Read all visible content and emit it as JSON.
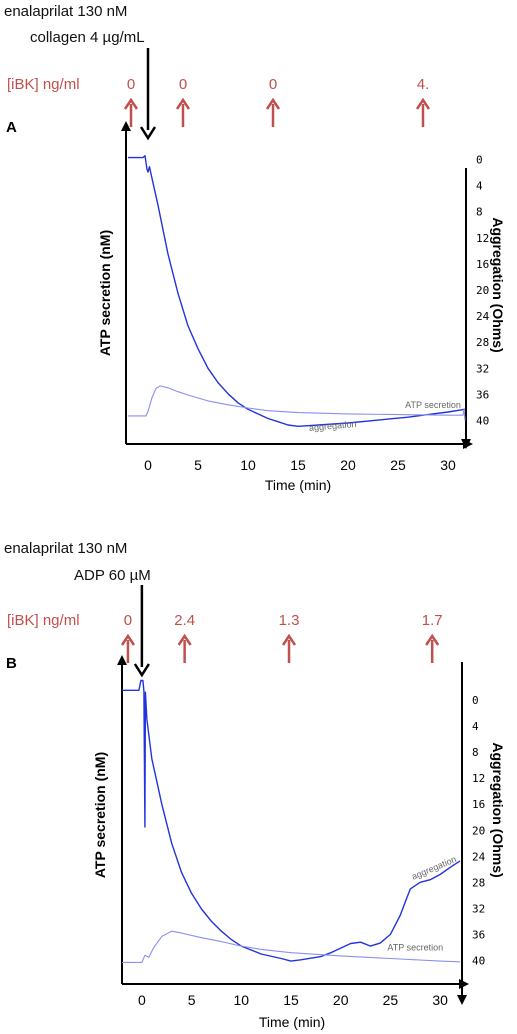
{
  "colors": {
    "agent_text": "#111111",
    "ibk": "#c0504d",
    "trace": "#2233dd",
    "trace_light": "#8a8ff0",
    "axis": "#000000"
  },
  "chart_data": [
    {
      "panel": "A",
      "type": "line",
      "agents": [
        "enalaprilat 130 nM",
        "collagen 4 µg/mL"
      ],
      "ibk_label": "[iBK] ng/ml",
      "ibk_markers": [
        {
          "x": -1.7,
          "label": "0"
        },
        {
          "x": 3.5,
          "label": "0"
        },
        {
          "x": 12.5,
          "label": "0"
        },
        {
          "x": 27.5,
          "label": "4."
        }
      ],
      "agonist_x": 0,
      "xlabel": "Time (min)",
      "ylabel_left": "ATP secretion (nM)",
      "ylabel_right": "Aggregation  (Ohms)",
      "xlim": [
        -2.2,
        31.8
      ],
      "xticks": [
        0,
        5,
        10,
        15,
        20,
        25,
        30
      ],
      "ylim_right": [
        -3,
        43
      ],
      "yticks_right": [
        0,
        4,
        8,
        12,
        16,
        20,
        24,
        28,
        32,
        36,
        40
      ],
      "series": [
        {
          "name": "aggregation",
          "style": "dark",
          "points": [
            [
              -2.0,
              -0.3
            ],
            [
              -0.5,
              -0.3
            ],
            [
              -0.3,
              -0.6
            ],
            [
              -0.1,
              1.5
            ],
            [
              0,
              1.9
            ],
            [
              0.15,
              1.1
            ],
            [
              0.3,
              2.2
            ],
            [
              1,
              7
            ],
            [
              2,
              14.5
            ],
            [
              3,
              20.5
            ],
            [
              4,
              25.5
            ],
            [
              5,
              29
            ],
            [
              6,
              32
            ],
            [
              7,
              34.2
            ],
            [
              8,
              35.9
            ],
            [
              9,
              37.3
            ],
            [
              10,
              38.3
            ],
            [
              11,
              39
            ],
            [
              12,
              39.7
            ],
            [
              13,
              40.2
            ],
            [
              14,
              40.7
            ],
            [
              15,
              40.9
            ],
            [
              16,
              40.8
            ],
            [
              18,
              40.6
            ],
            [
              20,
              40.4
            ],
            [
              22,
              40.1
            ],
            [
              24,
              39.8
            ],
            [
              26,
              39.5
            ],
            [
              28,
              39.1
            ],
            [
              30,
              38.7
            ],
            [
              31.7,
              38.3
            ]
          ]
        },
        {
          "name": "ATP secretion",
          "style": "light",
          "points": [
            [
              -2.0,
              39.3
            ],
            [
              -0.2,
              39.3
            ],
            [
              0,
              38.6
            ],
            [
              0.4,
              36.5
            ],
            [
              0.8,
              35.1
            ],
            [
              1.2,
              34.7
            ],
            [
              2,
              35
            ],
            [
              3,
              35.6
            ],
            [
              4,
              36.1
            ],
            [
              6,
              37
            ],
            [
              8,
              37.6
            ],
            [
              10,
              38.1
            ],
            [
              12,
              38.5
            ],
            [
              15,
              38.8
            ],
            [
              20,
              39
            ],
            [
              25,
              39.1
            ],
            [
              30,
              39.2
            ],
            [
              31.5,
              39.2
            ],
            [
              31.6,
              38.2
            ],
            [
              31.7,
              40
            ]
          ]
        }
      ],
      "annotations": [
        {
          "text": "ATP secretion",
          "x": 28.5,
          "y": 38.1
        },
        {
          "text": "aggregation",
          "x": 18.5,
          "y": 41.3,
          "angle": -5
        }
      ]
    },
    {
      "panel": "B",
      "type": "line",
      "agents": [
        "enalaprilat 130 nM",
        "ADP 60 µM"
      ],
      "ibk_label": "[iBK] ng/ml",
      "ibk_markers": [
        {
          "x": -1.4,
          "label": "0"
        },
        {
          "x": 4.3,
          "label": "2.4"
        },
        {
          "x": 14.8,
          "label": "1.3"
        },
        {
          "x": 29.2,
          "label": "1.7"
        }
      ],
      "agonist_x": 0,
      "xlabel": "Time (min)",
      "ylabel_left": "ATP secretion (nM)",
      "ylabel_right": "Aggregation  (Ohms)",
      "xlim": [
        -2.0,
        32.2
      ],
      "xticks": [
        0,
        5,
        10,
        15,
        20,
        25,
        30
      ],
      "ylim_right": [
        -4,
        43
      ],
      "yticks_right": [
        0,
        4,
        8,
        12,
        16,
        20,
        24,
        28,
        32,
        36,
        40
      ],
      "series": [
        {
          "name": "aggregation",
          "style": "dark",
          "points": [
            [
              -2.0,
              -1.5
            ],
            [
              -0.3,
              -1.5
            ],
            [
              -0.1,
              -3
            ],
            [
              0.1,
              -3
            ],
            [
              0.2,
              -1.4
            ],
            [
              0.3,
              19.5
            ],
            [
              0.35,
              -1.2
            ],
            [
              0.5,
              3
            ],
            [
              1,
              9
            ],
            [
              2,
              16
            ],
            [
              3,
              22
            ],
            [
              4,
              26.5
            ],
            [
              5,
              29.7
            ],
            [
              6,
              32.1
            ],
            [
              7,
              34
            ],
            [
              8,
              35.5
            ],
            [
              9,
              36.8
            ],
            [
              10,
              37.8
            ],
            [
              12,
              39
            ],
            [
              14,
              39.7
            ],
            [
              15,
              40.1
            ],
            [
              16,
              39.9
            ],
            [
              18,
              39.4
            ],
            [
              19,
              38.8
            ],
            [
              20,
              38.1
            ],
            [
              21,
              37.4
            ],
            [
              22,
              37.2
            ],
            [
              23,
              37.8
            ],
            [
              24,
              37.3
            ],
            [
              25,
              36
            ],
            [
              26,
              33
            ],
            [
              26.5,
              31
            ],
            [
              27,
              29
            ],
            [
              28,
              28
            ],
            [
              29,
              27.6
            ],
            [
              30,
              26.8
            ],
            [
              31,
              25.7
            ],
            [
              32,
              24.7
            ]
          ]
        },
        {
          "name": "ATP secretion",
          "style": "light",
          "points": [
            [
              -2.0,
              40.3
            ],
            [
              0,
              40.3
            ],
            [
              0.3,
              39.2
            ],
            [
              0.7,
              39.5
            ],
            [
              1.2,
              38
            ],
            [
              2,
              36.3
            ],
            [
              3,
              35.5
            ],
            [
              4,
              35.8
            ],
            [
              6,
              36.5
            ],
            [
              8,
              37.1
            ],
            [
              10,
              37.8
            ],
            [
              12,
              38.3
            ],
            [
              15,
              38.8
            ],
            [
              20,
              39.3
            ],
            [
              25,
              39.7
            ],
            [
              30,
              40.1
            ],
            [
              32,
              40.2
            ]
          ]
        }
      ],
      "annotations": [
        {
          "text": "ATP secretion",
          "x": 27.5,
          "y": 38.5
        },
        {
          "text": "aggregation",
          "x": 29.5,
          "y": 26.2,
          "angle": -23
        }
      ]
    }
  ],
  "panels": [
    {
      "letter": "A"
    },
    {
      "letter": "B"
    }
  ]
}
